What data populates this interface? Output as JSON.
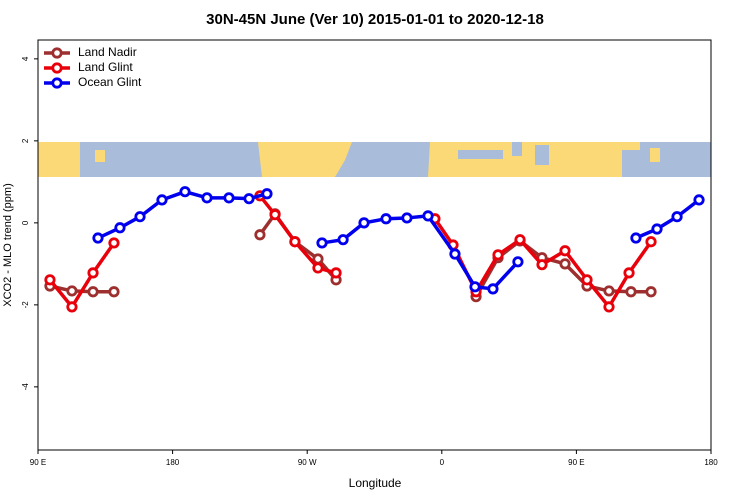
{
  "chart_data": {
    "type": "line",
    "title": "30N-45N June (Ver 10)   2015-01-01 to 2020-12-18",
    "x_label": "Longitude",
    "y_label": "XCO2 - MLO trend (ppm)",
    "xlim": [
      90,
      540
    ],
    "xticks": [
      {
        "value": 90,
        "label": "90 E"
      },
      180,
      {
        "value": 270,
        "label": "90 W"
      },
      {
        "value": 360,
        "label": "0"
      },
      {
        "value": 450,
        "label": "90 E"
      },
      {
        "value": 540,
        "label": "180"
      }
    ],
    "ylim": [
      -5.54,
      4.46
    ],
    "yticks": [
      -4,
      -2,
      0,
      2,
      4
    ],
    "legend": "top-left",
    "series": [
      {
        "name": "Land Nadir",
        "color": "#9e2f2f",
        "x": [
          98.0,
          112.7,
          126.8,
          140.8,
          null,
          238.4,
          248.5,
          261.8,
          277.2,
          289.3,
          null,
          382.9,
          397.6,
          412.3,
          427.0,
          442.4,
          457.1,
          471.8,
          486.5,
          499.9
        ],
        "values": [
          -1.54,
          -1.66,
          -1.68,
          -1.68,
          null,
          -0.29,
          0.22,
          -0.46,
          -0.88,
          -1.39,
          null,
          -1.8,
          -0.85,
          -0.44,
          -0.85,
          -1.0,
          -1.54,
          -1.66,
          -1.68,
          -1.68
        ]
      },
      {
        "name": "Land Glint",
        "color": "#e8000b",
        "x": [
          98.0,
          112.7,
          126.8,
          140.8,
          null,
          238.4,
          248.5,
          261.8,
          277.2,
          289.3,
          null,
          355.4,
          367.5,
          382.9,
          397.6,
          412.3,
          427.0,
          442.4,
          457.1,
          471.8,
          485.2,
          499.9
        ],
        "values": [
          -1.39,
          -2.05,
          -1.22,
          -0.49,
          null,
          0.66,
          0.2,
          -0.46,
          -1.1,
          -1.22,
          null,
          0.1,
          -0.54,
          -1.68,
          -0.78,
          -0.41,
          -1.02,
          -0.68,
          -1.39,
          -2.05,
          -1.22,
          -0.46
        ]
      },
      {
        "name": "Ocean Glint",
        "color": "#0000ee",
        "x": [
          130.1,
          144.8,
          158.2,
          172.9,
          188.3,
          203.0,
          217.7,
          231.1,
          243.1,
          null,
          279.9,
          294.0,
          308.0,
          322.7,
          336.7,
          350.8,
          368.8,
          382.2,
          394.2,
          410.9,
          null,
          489.8,
          503.9,
          517.3,
          532.0
        ],
        "values": [
          -0.37,
          -0.12,
          0.15,
          0.56,
          0.76,
          0.61,
          0.61,
          0.59,
          0.71,
          null,
          -0.49,
          -0.41,
          0.0,
          0.1,
          0.12,
          0.17,
          -0.76,
          -1.56,
          -1.61,
          -0.95,
          null,
          -0.37,
          -0.15,
          0.15,
          0.56
        ]
      }
    ]
  }
}
